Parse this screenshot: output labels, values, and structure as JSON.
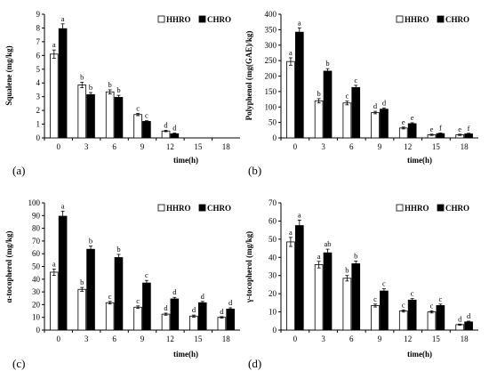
{
  "figure": {
    "legend_labels": [
      "HHRO",
      "CHRO"
    ],
    "colors": {
      "HHRO": "#ffffff",
      "CHRO": "#000000",
      "axis": "#000000"
    }
  },
  "chart_data": [
    {
      "type": "bar",
      "panel_label": "(a)",
      "xlabel": "time(h)",
      "ylabel": "Squalene (mg/kg)",
      "categories": [
        "0",
        "3",
        "6",
        "9",
        "12",
        "15",
        "18"
      ],
      "ylim": [
        0,
        9
      ],
      "yticks": [
        0,
        1,
        2,
        3,
        4,
        5,
        6,
        7,
        8,
        9
      ],
      "legend": "top-right",
      "grid": false,
      "series": [
        {
          "name": "HHRO",
          "values": [
            6.1,
            3.85,
            3.35,
            1.7,
            0.5,
            null,
            null
          ],
          "errors": [
            0.3,
            0.2,
            0.15,
            0.08,
            0.05,
            null,
            null
          ],
          "labels": [
            "a",
            "b",
            "b",
            "c",
            "d",
            "",
            ""
          ]
        },
        {
          "name": "CHRO",
          "values": [
            7.95,
            3.15,
            2.95,
            1.2,
            0.3,
            null,
            null
          ],
          "errors": [
            0.35,
            0.15,
            0.15,
            0.05,
            0.05,
            null,
            null
          ],
          "labels": [
            "a",
            "b",
            "b",
            "c",
            "d",
            "",
            ""
          ]
        }
      ]
    },
    {
      "type": "bar",
      "panel_label": "(b)",
      "xlabel": "time(h)",
      "ylabel": "Polyphenol (mg(GAE)/kg)",
      "categories": [
        "0",
        "3",
        "6",
        "9",
        "12",
        "15",
        "18"
      ],
      "ylim": [
        0,
        400
      ],
      "yticks": [
        0,
        50,
        100,
        150,
        200,
        250,
        300,
        350,
        400
      ],
      "legend": "top-right",
      "grid": false,
      "series": [
        {
          "name": "HHRO",
          "values": [
            247,
            120,
            113,
            82,
            32,
            10,
            10
          ],
          "errors": [
            12,
            7,
            6,
            4,
            3,
            2,
            2
          ],
          "labels": [
            "a",
            "b",
            "c",
            "d",
            "e",
            "e",
            "e"
          ]
        },
        {
          "name": "CHRO",
          "values": [
            342,
            216,
            163,
            93,
            46,
            14,
            13
          ],
          "errors": [
            14,
            8,
            7,
            4,
            3,
            2,
            2
          ],
          "labels": [
            "a",
            "b",
            "c",
            "d",
            "e",
            "f",
            "f"
          ]
        }
      ]
    },
    {
      "type": "bar",
      "panel_label": "(c)",
      "xlabel": "time(h)",
      "ylabel": "α-tocopherol (mg/kg)",
      "categories": [
        "0",
        "3",
        "6",
        "9",
        "12",
        "15",
        "18"
      ],
      "ylim": [
        0,
        100
      ],
      "yticks": [
        0,
        10,
        20,
        30,
        40,
        50,
        60,
        70,
        80,
        90,
        100
      ],
      "legend": "top-right",
      "grid": false,
      "series": [
        {
          "name": "HHRO",
          "values": [
            45.5,
            32,
            21.5,
            18,
            12.5,
            11,
            10
          ],
          "errors": [
            2.5,
            1.5,
            1.0,
            1.0,
            0.8,
            0.8,
            0.6
          ],
          "labels": [
            "a",
            "b",
            "c",
            "c",
            "d",
            "d",
            "d"
          ]
        },
        {
          "name": "CHRO",
          "values": [
            89.5,
            63.5,
            57,
            37,
            24.5,
            21.5,
            16.5
          ],
          "errors": [
            4,
            2.5,
            2.5,
            2,
            1.2,
            1.0,
            1.0
          ],
          "labels": [
            "a",
            "b",
            "b",
            "c",
            "d",
            "d",
            "d"
          ]
        }
      ]
    },
    {
      "type": "bar",
      "panel_label": "(d)",
      "xlabel": "time(h)",
      "ylabel": "γ-tocopherol (mg/kg)",
      "categories": [
        "0",
        "3",
        "6",
        "9",
        "12",
        "15",
        "18"
      ],
      "ylim": [
        0,
        70
      ],
      "yticks": [
        0,
        10,
        20,
        30,
        40,
        50,
        60,
        70
      ],
      "legend": "top-right",
      "grid": false,
      "series": [
        {
          "name": "HHRO",
          "values": [
            48.5,
            36,
            28.5,
            13.5,
            10.5,
            10,
            3
          ],
          "errors": [
            2.5,
            1.8,
            1.5,
            0.8,
            0.6,
            0.6,
            0.3
          ],
          "labels": [
            "a",
            "a",
            "b",
            "c",
            "c",
            "c",
            "d"
          ]
        },
        {
          "name": "CHRO",
          "values": [
            57.5,
            42.5,
            36.5,
            21.5,
            16.5,
            13.5,
            4.5
          ],
          "errors": [
            3,
            2,
            1.5,
            1.2,
            0.8,
            0.8,
            0.4
          ],
          "labels": [
            "a",
            "ab",
            "b",
            "c",
            "c",
            "c",
            "d"
          ]
        }
      ]
    }
  ]
}
